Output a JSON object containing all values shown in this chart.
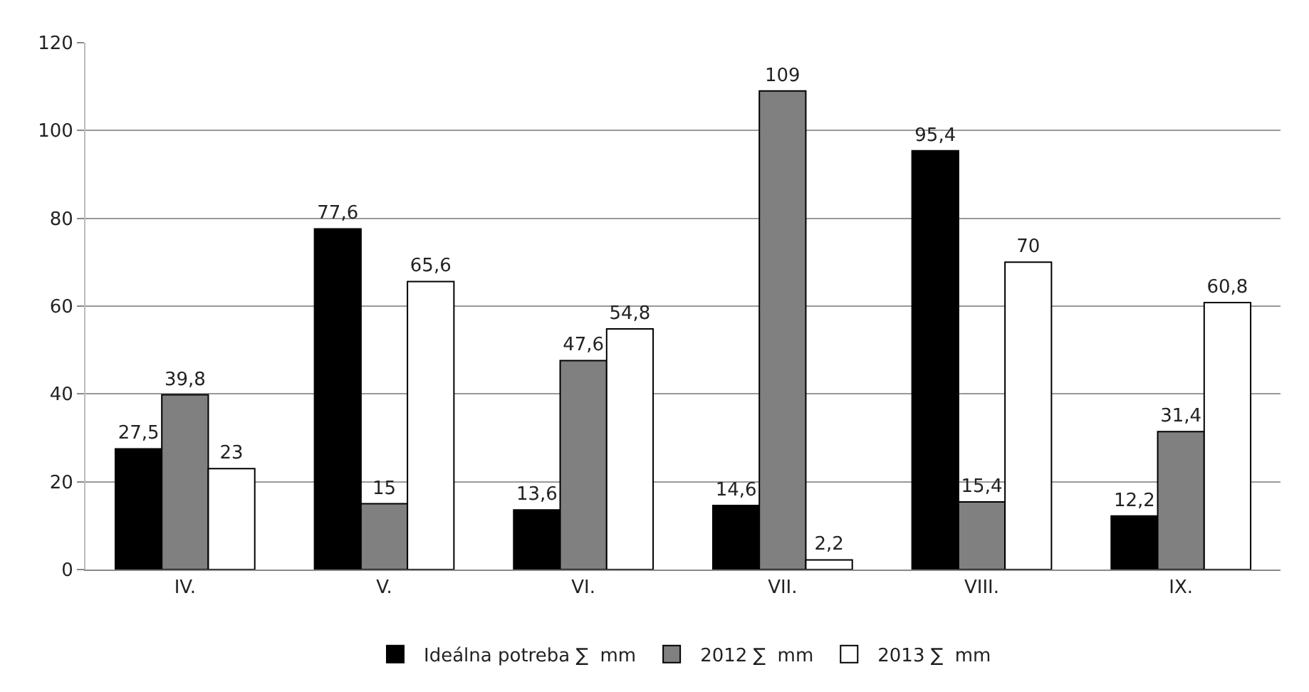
{
  "chart_data": {
    "type": "bar",
    "categories": [
      "IV.",
      "V.",
      "VI.",
      "VII.",
      "VIII.",
      "IX."
    ],
    "series": [
      {
        "name": "Ideálna potreba ∑  mm",
        "color": "#000000",
        "values": [
          27.5,
          77.6,
          13.6,
          14.6,
          95.4,
          12.2
        ],
        "value_labels": [
          "27,5",
          "77,6",
          "13,6",
          "14,6",
          "95,4",
          "12,2"
        ]
      },
      {
        "name": "2012 ∑  mm",
        "color": "#808080",
        "values": [
          39.8,
          15,
          47.6,
          109,
          15.4,
          31.4
        ],
        "value_labels": [
          "39,8",
          "15",
          "47,6",
          "109",
          "15,4",
          "31,4"
        ]
      },
      {
        "name": "2013 ∑  mm",
        "color": "#ffffff",
        "values": [
          23,
          65.6,
          54.8,
          2.2,
          70,
          60.8
        ],
        "value_labels": [
          "23",
          "65,6",
          "54,8",
          "2,2",
          "70",
          "60,8"
        ]
      }
    ],
    "ylim": [
      0,
      120
    ],
    "yticks": [
      0,
      20,
      40,
      60,
      80,
      100,
      120
    ],
    "grid": "y",
    "legend": "bottom"
  }
}
